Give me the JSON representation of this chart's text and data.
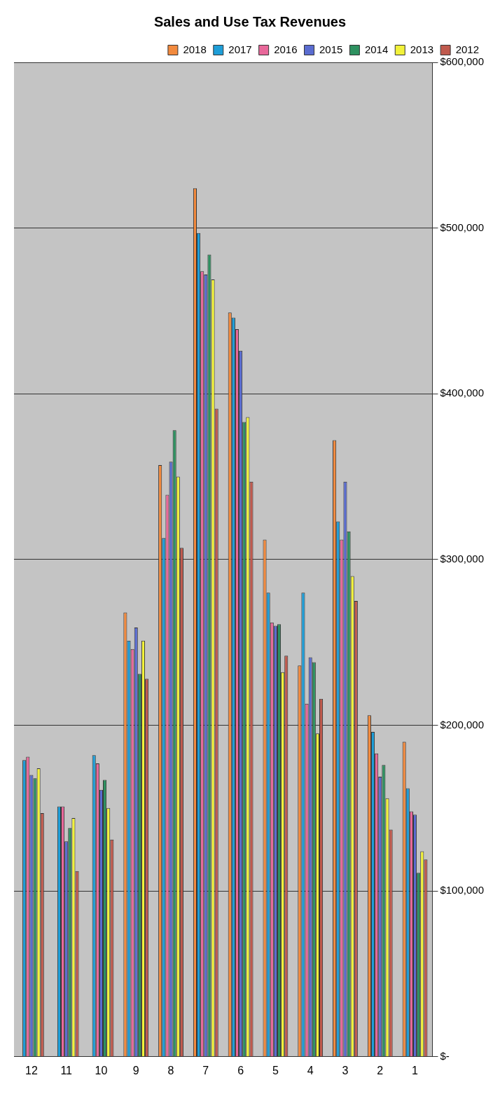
{
  "chart_data": {
    "type": "bar",
    "title": "Sales and Use Tax Revenues",
    "categories": [
      "12",
      "11",
      "10",
      "9",
      "8",
      "7",
      "6",
      "5",
      "4",
      "3",
      "2",
      "1"
    ],
    "series": [
      {
        "name": "2018",
        "color": "#f28a3e",
        "values": [
          null,
          null,
          null,
          268000,
          357000,
          524000,
          449000,
          312000,
          236000,
          372000,
          206000,
          190000
        ]
      },
      {
        "name": "2017",
        "color": "#1e9ed8",
        "values": [
          179000,
          151000,
          182000,
          251000,
          313000,
          497000,
          446000,
          280000,
          280000,
          323000,
          196000,
          162000
        ]
      },
      {
        "name": "2016",
        "color": "#e8689a",
        "values": [
          181000,
          151000,
          177000,
          246000,
          339000,
          474000,
          439000,
          262000,
          213000,
          312000,
          183000,
          148000
        ]
      },
      {
        "name": "2015",
        "color": "#5a6cd0",
        "values": [
          170000,
          130000,
          161000,
          259000,
          359000,
          472000,
          426000,
          260000,
          241000,
          347000,
          169000,
          146000
        ]
      },
      {
        "name": "2014",
        "color": "#2e9160",
        "values": [
          168000,
          138000,
          167000,
          231000,
          378000,
          484000,
          383000,
          261000,
          238000,
          317000,
          176000,
          111000
        ]
      },
      {
        "name": "2013",
        "color": "#f2f23a",
        "values": [
          174000,
          144000,
          150000,
          251000,
          350000,
          469000,
          386000,
          232000,
          195000,
          290000,
          156000,
          124000
        ]
      },
      {
        "name": "2012",
        "color": "#c05a4e",
        "values": [
          147000,
          112000,
          131000,
          228000,
          307000,
          391000,
          347000,
          242000,
          216000,
          275000,
          137000,
          119000
        ]
      }
    ],
    "ylim": [
      0,
      600000
    ],
    "yticks": [
      {
        "value": 0,
        "label": "$-"
      },
      {
        "value": 100000,
        "label": "$100,000"
      },
      {
        "value": 200000,
        "label": "$200,000"
      },
      {
        "value": 300000,
        "label": "$300,000"
      },
      {
        "value": 400000,
        "label": "$400,000"
      },
      {
        "value": 500000,
        "label": "$500,000"
      },
      {
        "value": 600000,
        "label": "$600,000"
      }
    ],
    "grid": "y",
    "legend": "top right"
  }
}
